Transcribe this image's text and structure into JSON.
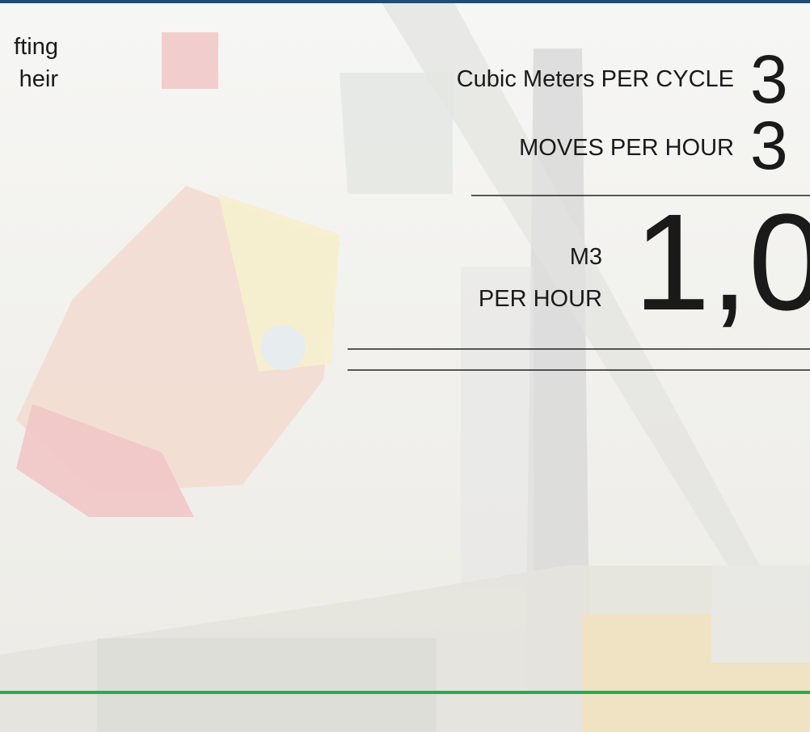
{
  "body_text": [
    "fting",
    "heir"
  ],
  "metrics": [
    {
      "label": "Cubic Meters PER CYCLE",
      "value": "3"
    },
    {
      "label": "MOVES PER HOUR",
      "value": "3"
    },
    {
      "label_lines": [
        "M3",
        "PER HOUR"
      ],
      "value": "1,0"
    }
  ]
}
